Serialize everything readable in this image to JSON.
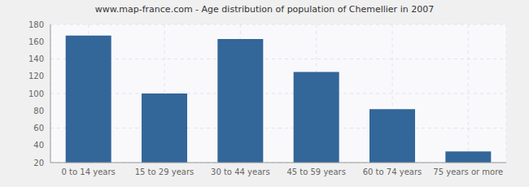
{
  "chart_data": {
    "type": "bar",
    "title": "www.map-france.com - Age distribution of population of Chemellier in 2007",
    "categories": [
      "0 to 14 years",
      "15 to 29 years",
      "30 to 44 years",
      "45 to 59 years",
      "60 to 74 years",
      "75 years or more"
    ],
    "values": [
      167,
      100,
      163,
      125,
      82,
      33
    ],
    "color": "#336699",
    "ylim": [
      20,
      180
    ],
    "yticks": [
      20,
      40,
      60,
      80,
      100,
      120,
      140,
      160,
      180
    ],
    "grid": true
  }
}
